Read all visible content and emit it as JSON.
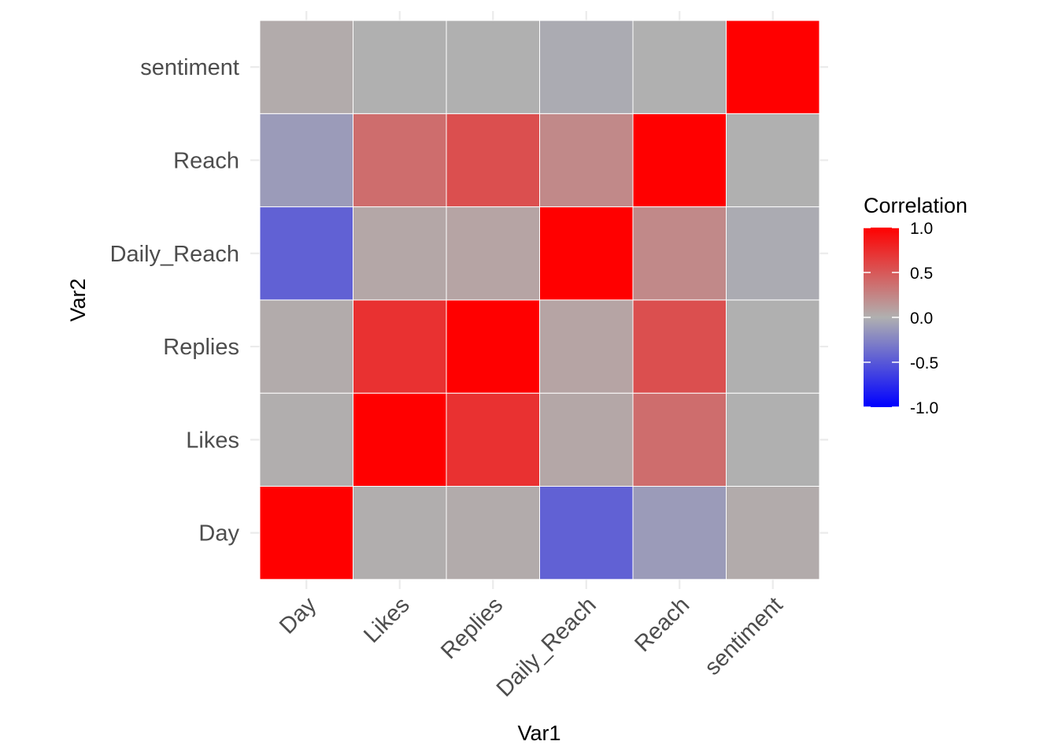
{
  "chart_data": {
    "type": "heatmap",
    "xlabel": "Var1",
    "ylabel": "Var2",
    "x_categories": [
      "Day",
      "Likes",
      "Replies",
      "Daily_Reach",
      "Reach",
      "sentiment"
    ],
    "y_categories": [
      "Day",
      "Likes",
      "Replies",
      "Daily_Reach",
      "Reach",
      "sentiment"
    ],
    "values": [
      [
        1.0,
        0.01,
        0.03,
        -0.45,
        -0.12,
        0.03
      ],
      [
        0.01,
        1.0,
        0.72,
        0.05,
        0.38,
        0.0
      ],
      [
        0.03,
        0.72,
        1.0,
        0.07,
        0.55,
        0.0
      ],
      [
        -0.45,
        0.05,
        0.07,
        1.0,
        0.22,
        -0.03
      ],
      [
        -0.12,
        0.38,
        0.55,
        0.22,
        1.0,
        0.0
      ],
      [
        0.03,
        0.0,
        0.0,
        -0.03,
        0.0,
        1.0
      ]
    ],
    "legend": {
      "title": "Correlation",
      "ticks": [
        1.0,
        0.5,
        0.0,
        -0.5,
        -1.0
      ],
      "tick_labels": [
        "1.0",
        "0.5",
        "0.0",
        "-0.5",
        "-1.0"
      ],
      "limits": [
        -1,
        1
      ],
      "position": "right"
    },
    "colors": {
      "low": "#0000ff",
      "mid": "#b0b0b0",
      "high": "#ff0000",
      "background": "#ffffff",
      "grid": "#ebebeb",
      "tile_border": "#ffffff"
    },
    "grid": true
  }
}
